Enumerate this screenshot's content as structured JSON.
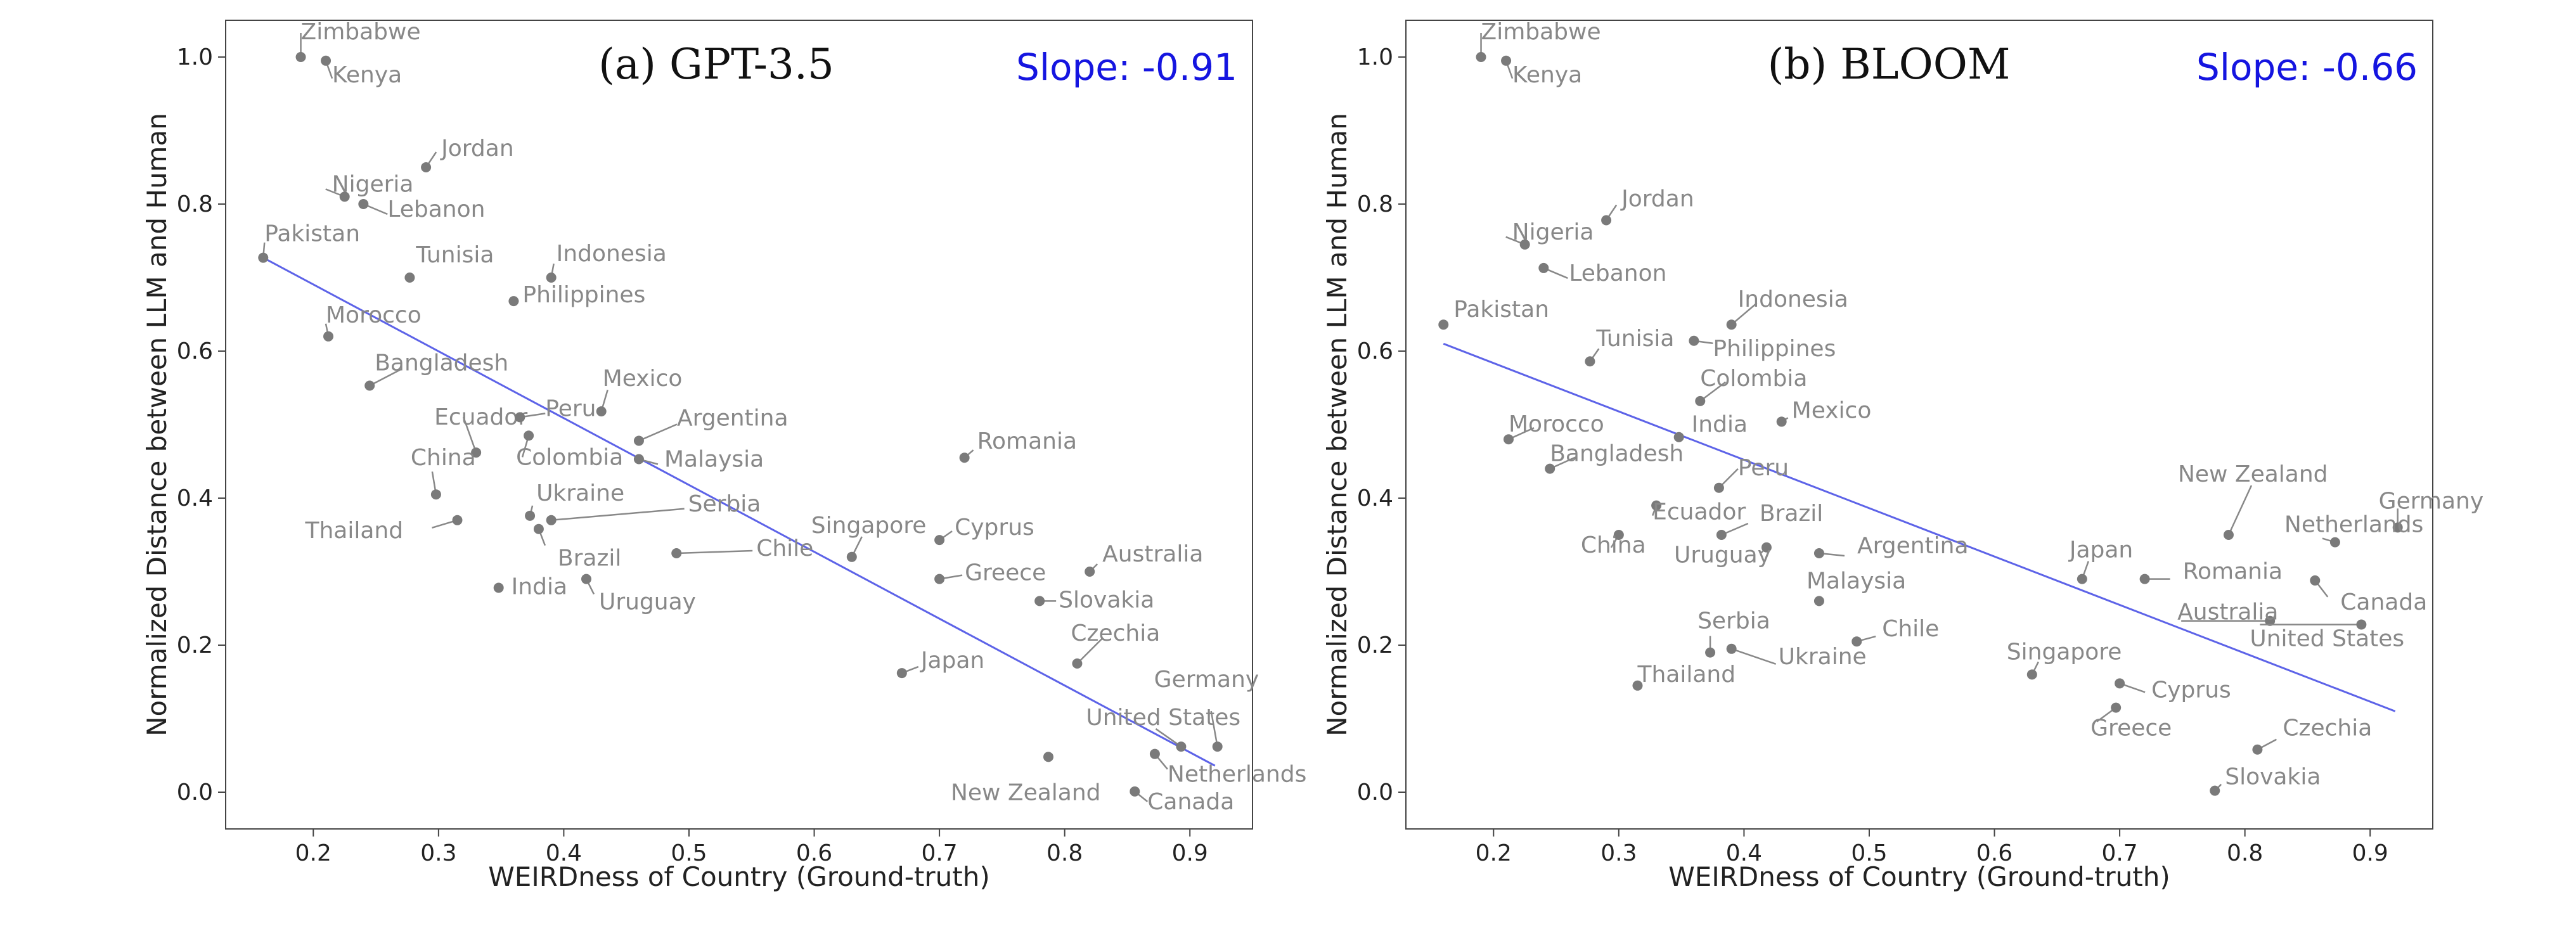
{
  "chart_data": [
    {
      "type": "scatter",
      "title": "(a) GPT-3.5",
      "slope_label": "Slope: -0.91",
      "xlabel": "WEIRDness of Country (Ground-truth)",
      "ylabel": "Normalized Distance between LLM and Human",
      "xlim": [
        0.13,
        0.95
      ],
      "ylim": [
        -0.05,
        1.05
      ],
      "xticks": [
        "0.2",
        "0.3",
        "0.4",
        "0.5",
        "0.6",
        "0.7",
        "0.8",
        "0.9"
      ],
      "yticks": [
        "0.0",
        "0.2",
        "0.4",
        "0.6",
        "0.8",
        "1.0"
      ],
      "regression_line": {
        "x": [
          0.16,
          0.92
        ],
        "y": [
          0.727,
          0.036
        ]
      },
      "grid": false,
      "colors": {
        "points": "#7a7a7a",
        "labels": "#888888",
        "regression": "#5d63e8",
        "slope_text": "#1515e0"
      },
      "points": [
        {
          "label": "Zimbabwe",
          "x": 0.19,
          "y": 1.0
        },
        {
          "label": "Kenya",
          "x": 0.21,
          "y": 0.995
        },
        {
          "label": "Jordan",
          "x": 0.29,
          "y": 0.85
        },
        {
          "label": "Nigeria",
          "x": 0.225,
          "y": 0.81
        },
        {
          "label": "Lebanon",
          "x": 0.24,
          "y": 0.8
        },
        {
          "label": "Pakistan",
          "x": 0.16,
          "y": 0.727
        },
        {
          "label": "Tunisia",
          "x": 0.277,
          "y": 0.7
        },
        {
          "label": "Indonesia",
          "x": 0.39,
          "y": 0.7
        },
        {
          "label": "Philippines",
          "x": 0.36,
          "y": 0.668
        },
        {
          "label": "Morocco",
          "x": 0.212,
          "y": 0.62
        },
        {
          "label": "Bangladesh",
          "x": 0.245,
          "y": 0.553
        },
        {
          "label": "Mexico",
          "x": 0.43,
          "y": 0.518
        },
        {
          "label": "Ecuador",
          "x": 0.33,
          "y": 0.462
        },
        {
          "label": "Peru",
          "x": 0.365,
          "y": 0.51
        },
        {
          "label": "Colombia",
          "x": 0.372,
          "y": 0.485
        },
        {
          "label": "Argentina",
          "x": 0.46,
          "y": 0.478
        },
        {
          "label": "Malaysia",
          "x": 0.46,
          "y": 0.453
        },
        {
          "label": "Romania",
          "x": 0.72,
          "y": 0.455
        },
        {
          "label": "China",
          "x": 0.298,
          "y": 0.405
        },
        {
          "label": "Thailand",
          "x": 0.315,
          "y": 0.37
        },
        {
          "label": "Ukraine",
          "x": 0.373,
          "y": 0.376
        },
        {
          "label": "Serbia",
          "x": 0.39,
          "y": 0.37
        },
        {
          "label": "Brazil",
          "x": 0.38,
          "y": 0.358
        },
        {
          "label": "Cyprus",
          "x": 0.7,
          "y": 0.343
        },
        {
          "label": "Chile",
          "x": 0.49,
          "y": 0.325
        },
        {
          "label": "Singapore",
          "x": 0.63,
          "y": 0.32
        },
        {
          "label": "Australia",
          "x": 0.82,
          "y": 0.3
        },
        {
          "label": "Greece",
          "x": 0.7,
          "y": 0.29
        },
        {
          "label": "Uruguay",
          "x": 0.418,
          "y": 0.29
        },
        {
          "label": "India",
          "x": 0.348,
          "y": 0.278
        },
        {
          "label": "Slovakia",
          "x": 0.78,
          "y": 0.26
        },
        {
          "label": "Czechia",
          "x": 0.81,
          "y": 0.175
        },
        {
          "label": "Japan",
          "x": 0.67,
          "y": 0.162
        },
        {
          "label": "Germany",
          "x": 0.922,
          "y": 0.062
        },
        {
          "label": "United States",
          "x": 0.893,
          "y": 0.062
        },
        {
          "label": "Netherlands",
          "x": 0.872,
          "y": 0.052
        },
        {
          "label": "New Zealand",
          "x": 0.787,
          "y": 0.048
        },
        {
          "label": "Canada",
          "x": 0.856,
          "y": 0.001
        }
      ]
    },
    {
      "type": "scatter",
      "title": "(b) BLOOM",
      "slope_label": "Slope: -0.66",
      "xlabel": "WEIRDness of Country (Ground-truth)",
      "ylabel": "Normalized Distance between LLM and Human",
      "xlim": [
        0.13,
        0.95
      ],
      "ylim": [
        -0.05,
        1.05
      ],
      "xticks": [
        "0.2",
        "0.3",
        "0.4",
        "0.5",
        "0.6",
        "0.7",
        "0.8",
        "0.9"
      ],
      "yticks": [
        "0.0",
        "0.2",
        "0.4",
        "0.6",
        "0.8",
        "1.0"
      ],
      "regression_line": {
        "x": [
          0.16,
          0.92
        ],
        "y": [
          0.61,
          0.11
        ]
      },
      "grid": false,
      "colors": {
        "points": "#7a7a7a",
        "labels": "#888888",
        "regression": "#5d63e8",
        "slope_text": "#1515e0"
      },
      "points": [
        {
          "label": "Zimbabwe",
          "x": 0.19,
          "y": 1.0
        },
        {
          "label": "Kenya",
          "x": 0.21,
          "y": 0.995
        },
        {
          "label": "Jordan",
          "x": 0.29,
          "y": 0.778
        },
        {
          "label": "Nigeria",
          "x": 0.225,
          "y": 0.745
        },
        {
          "label": "Lebanon",
          "x": 0.24,
          "y": 0.713
        },
        {
          "label": "Pakistan",
          "x": 0.16,
          "y": 0.636
        },
        {
          "label": "Indonesia",
          "x": 0.39,
          "y": 0.636
        },
        {
          "label": "Philippines",
          "x": 0.36,
          "y": 0.614
        },
        {
          "label": "Tunisia",
          "x": 0.277,
          "y": 0.586
        },
        {
          "label": "Colombia",
          "x": 0.365,
          "y": 0.532
        },
        {
          "label": "Mexico",
          "x": 0.43,
          "y": 0.504
        },
        {
          "label": "India",
          "x": 0.348,
          "y": 0.483
        },
        {
          "label": "Morocco",
          "x": 0.212,
          "y": 0.48
        },
        {
          "label": "Bangladesh",
          "x": 0.245,
          "y": 0.44
        },
        {
          "label": "Peru",
          "x": 0.38,
          "y": 0.414
        },
        {
          "label": "New Zealand",
          "x": 0.787,
          "y": 0.35
        },
        {
          "label": "Germany",
          "x": 0.922,
          "y": 0.36
        },
        {
          "label": "Netherlands",
          "x": 0.872,
          "y": 0.34
        },
        {
          "label": "Ecuador",
          "x": 0.33,
          "y": 0.39
        },
        {
          "label": "Brazil",
          "x": 0.382,
          "y": 0.35
        },
        {
          "label": "China",
          "x": 0.3,
          "y": 0.35
        },
        {
          "label": "Uruguay",
          "x": 0.418,
          "y": 0.333
        },
        {
          "label": "Argentina",
          "x": 0.46,
          "y": 0.325
        },
        {
          "label": "Japan",
          "x": 0.67,
          "y": 0.29
        },
        {
          "label": "Romania",
          "x": 0.72,
          "y": 0.29
        },
        {
          "label": "Canada",
          "x": 0.856,
          "y": 0.288
        },
        {
          "label": "Malaysia",
          "x": 0.46,
          "y": 0.26
        },
        {
          "label": "Australia",
          "x": 0.82,
          "y": 0.233
        },
        {
          "label": "United States",
          "x": 0.893,
          "y": 0.228
        },
        {
          "label": "Chile",
          "x": 0.49,
          "y": 0.205
        },
        {
          "label": "Serbia",
          "x": 0.373,
          "y": 0.19
        },
        {
          "label": "Ukraine",
          "x": 0.39,
          "y": 0.195
        },
        {
          "label": "Singapore",
          "x": 0.63,
          "y": 0.16
        },
        {
          "label": "Cyprus",
          "x": 0.7,
          "y": 0.148
        },
        {
          "label": "Thailand",
          "x": 0.315,
          "y": 0.145
        },
        {
          "label": "Greece",
          "x": 0.697,
          "y": 0.115
        },
        {
          "label": "Czechia",
          "x": 0.81,
          "y": 0.058
        },
        {
          "label": "Slovakia",
          "x": 0.776,
          "y": 0.002
        }
      ]
    }
  ]
}
